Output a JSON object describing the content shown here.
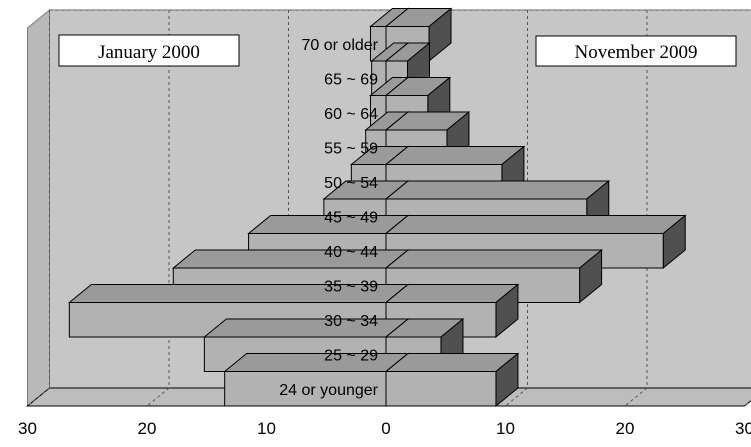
{
  "chart_data": {
    "type": "bar",
    "orientation": "horizontal",
    "style": "3d-population-pyramid",
    "categories": [
      "24 or younger",
      "25 ~ 29",
      "30 ~ 34",
      "35 ~ 39",
      "40 ~ 44",
      "45 ~ 49",
      "50 ~ 54",
      "55 ~ 59",
      "60 ~ 64",
      "65 ~ 69",
      "70 or older"
    ],
    "series": [
      {
        "name": "January 2000",
        "side": "left",
        "values": [
          13.5,
          15.2,
          26.5,
          17.8,
          11.5,
          5.2,
          2.9,
          1.7,
          1.3,
          1.2,
          1.3
        ]
      },
      {
        "name": "November 2009",
        "side": "right",
        "values": [
          9.2,
          4.6,
          9.2,
          16.2,
          23.2,
          16.8,
          9.7,
          5.1,
          3.5,
          1.8,
          3.6
        ]
      }
    ],
    "x_ticks": [
      "30",
      "20",
      "10",
      "0",
      "10",
      "20",
      "30"
    ],
    "xlim": [
      -30,
      30
    ],
    "grid": true,
    "legend": {
      "left_label": "January 2000",
      "right_label": "November 2009"
    }
  }
}
